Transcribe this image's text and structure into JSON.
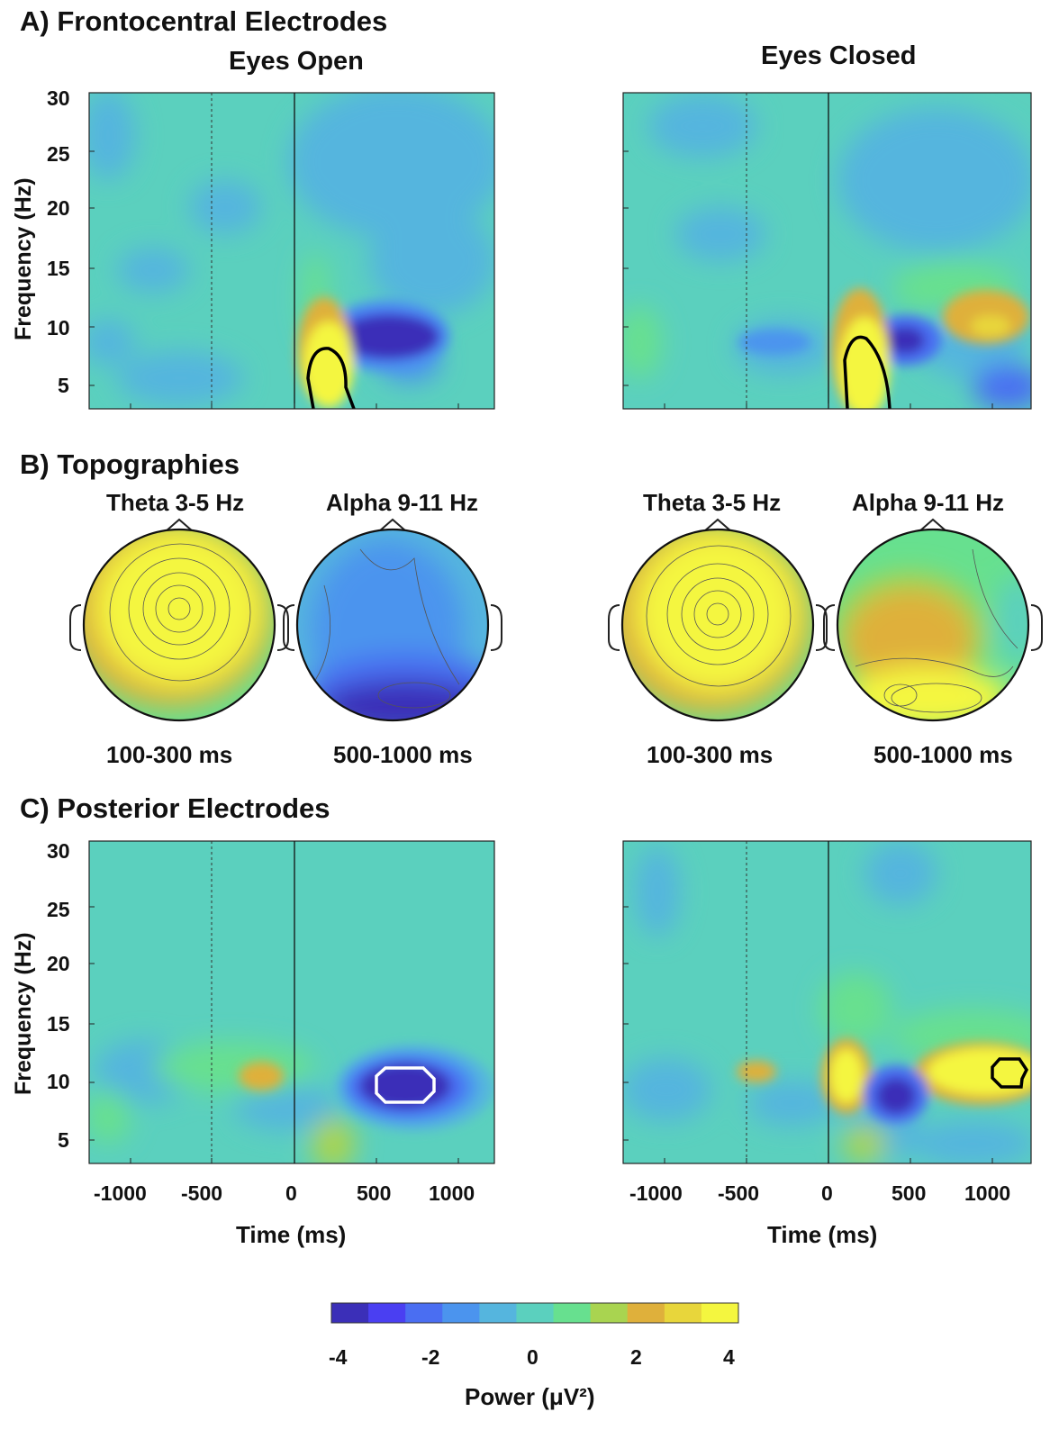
{
  "section_a": {
    "title": "A)  Frontocentral Electrodes",
    "col_open": "Eyes Open",
    "col_closed": "Eyes Closed"
  },
  "section_b": {
    "title": "B)  Topographies",
    "theta_label": "Theta 3-5 Hz",
    "alpha_label": "Alpha 9-11 Hz",
    "theta_window": "100-300 ms",
    "alpha_window": "500-1000 ms"
  },
  "section_c": {
    "title": "C) Posterior Electrodes"
  },
  "ylabel": "Frequency (Hz)",
  "xlabel": "Time (ms)",
  "y_ticks": [
    "30",
    "25",
    "20",
    "15",
    "10",
    "5"
  ],
  "x_ticks": [
    "-1000",
    "-500",
    "0",
    "500",
    "1000"
  ],
  "colorbar": {
    "label": "Power (μV²)",
    "ticks": [
      "-4",
      "-2",
      "0",
      "2",
      "4"
    ],
    "colors": [
      "#3b2fb8",
      "#4a3ff2",
      "#4a6ef2",
      "#4b94ee",
      "#55b5de",
      "#5bd0be",
      "#67e08f",
      "#a9d450",
      "#dfb03b",
      "#e8d63b",
      "#f4f63f"
    ]
  },
  "chart_data": [
    {
      "type": "heatmap",
      "title": "Eyes Open",
      "xlabel": "Time (ms)",
      "ylabel": "Frequency (Hz)",
      "xlim": [
        -1250,
        1250
      ],
      "ylim": [
        3,
        30
      ],
      "clim": [
        -4,
        4
      ],
      "annotations": [
        "dashed line at -500 ms",
        "solid line at 0 ms"
      ],
      "features": [
        {
          "kind": "increase",
          "time_ms": 180,
          "freq_hz": 6,
          "value": 4,
          "significant": true
        },
        {
          "kind": "decrease",
          "time_ms": 600,
          "freq_hz": 9.5,
          "value": -4
        }
      ]
    },
    {
      "type": "heatmap",
      "title": "Eyes Closed",
      "xlabel": "Time (ms)",
      "ylabel": "Frequency (Hz)",
      "xlim": [
        -1250,
        1250
      ],
      "ylim": [
        3,
        30
      ],
      "clim": [
        -4,
        4
      ],
      "features": [
        {
          "kind": "increase",
          "time_ms": 180,
          "freq_hz": 6,
          "value": 4,
          "significant": true
        },
        {
          "kind": "decrease",
          "time_ms": 450,
          "freq_hz": 9,
          "value": -4
        },
        {
          "kind": "increase",
          "time_ms": 1050,
          "freq_hz": 10,
          "value": 3
        }
      ]
    },
    {
      "type": "heatmap",
      "title": "",
      "xlabel": "Time (ms)",
      "ylabel": "Frequency (Hz)",
      "xlim": [
        -1250,
        1250
      ],
      "ylim": [
        3,
        30
      ],
      "clim": [
        -4,
        4
      ],
      "features": [
        {
          "kind": "increase",
          "time_ms": -230,
          "freq_hz": 10.5,
          "value": 2
        },
        {
          "kind": "decrease",
          "time_ms": 650,
          "freq_hz": 9.5,
          "value": -4,
          "significant": true
        }
      ]
    },
    {
      "type": "heatmap",
      "title": "",
      "xlabel": "Time (ms)",
      "ylabel": "Frequency (Hz)",
      "xlim": [
        -1250,
        1250
      ],
      "ylim": [
        3,
        30
      ],
      "clim": [
        -4,
        4
      ],
      "features": [
        {
          "kind": "increase",
          "time_ms": 100,
          "freq_hz": 10,
          "value": 4
        },
        {
          "kind": "decrease",
          "time_ms": 450,
          "freq_hz": 9,
          "value": -4
        },
        {
          "kind": "increase",
          "time_ms": 1100,
          "freq_hz": 10.5,
          "value": 4,
          "significant": true
        }
      ]
    }
  ]
}
